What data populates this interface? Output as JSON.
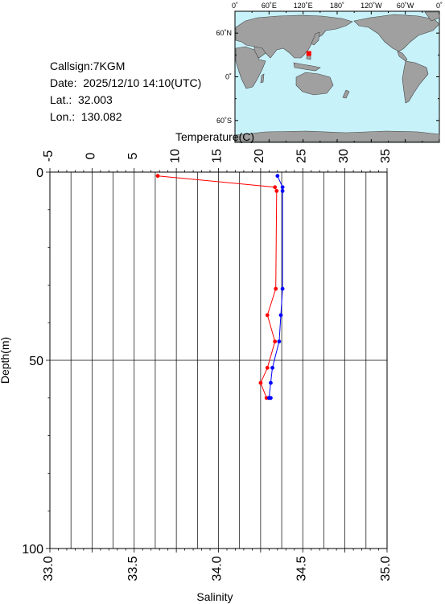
{
  "info": {
    "callsign": "Callsign:7KGM",
    "date": "Date:  2025/12/10 14:10(UTC)",
    "lat": "Lat.:  32.003",
    "lon": "Lon.:  130.082"
  },
  "map": {
    "lon_labels": [
      "0˚",
      "60˚E",
      "120˚E",
      "180˚",
      "120˚W",
      "60˚W",
      "0˚"
    ],
    "lat_labels": [
      "60˚N",
      "0˚",
      "60˚S"
    ],
    "marker": {
      "lat": 32.003,
      "lon": 130.082
    },
    "colors": {
      "ocean": "#c8f2fa",
      "land": "#a0a0a0",
      "marker": "#ff0000"
    }
  },
  "chart_data": {
    "type": "line",
    "ylabel": "Depth(m)",
    "ylim": [
      0,
      100
    ],
    "y_ticks": [
      "0",
      "50",
      "100"
    ],
    "top_axis": {
      "label": "Temperature(C)",
      "lim": [
        -5,
        35
      ],
      "ticks": [
        "-5",
        "0",
        "5",
        "10",
        "15",
        "20",
        "25",
        "30",
        "35"
      ]
    },
    "bottom_axis": {
      "label": "Salinity",
      "lim": [
        33.0,
        35.0
      ],
      "ticks": [
        "33.0",
        "33.5",
        "34.0",
        "34.5",
        "35.0"
      ]
    },
    "grid": true,
    "series": [
      {
        "name": "",
        "axis": "temperature",
        "color": "#ff0000",
        "points": [
          [
            7.8,
            1
          ],
          [
            21.7,
            4
          ],
          [
            21.9,
            5
          ],
          [
            21.8,
            31
          ],
          [
            20.8,
            38
          ],
          [
            21.7,
            45
          ],
          [
            20.8,
            52
          ],
          [
            20.0,
            56
          ],
          [
            20.7,
            60
          ],
          [
            21.0,
            60
          ]
        ]
      },
      {
        "name": "",
        "axis": "salinity",
        "color": "#0000ff",
        "points": [
          [
            34.35,
            1
          ],
          [
            34.38,
            4
          ],
          [
            34.38,
            5
          ],
          [
            34.38,
            31
          ],
          [
            34.37,
            38
          ],
          [
            34.36,
            45
          ],
          [
            34.32,
            52
          ],
          [
            34.31,
            56
          ],
          [
            34.3,
            60
          ],
          [
            34.31,
            60
          ]
        ]
      }
    ]
  }
}
